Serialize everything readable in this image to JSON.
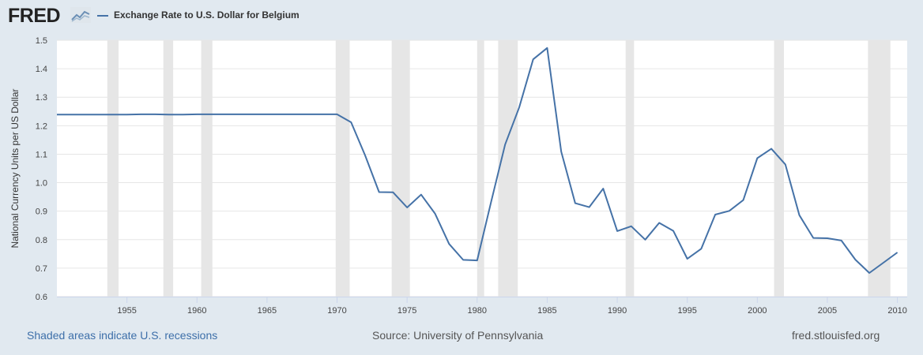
{
  "header": {
    "logo_text": "FRED",
    "logo_icon": "line-chart-icon"
  },
  "colors": {
    "background": "#e1e9f0",
    "plot_background": "#ffffff",
    "series_line": "#4572a7",
    "recession_shade": "#e6e6e6",
    "grid": "#e6e6e6",
    "link": "#3d6fa9"
  },
  "footer": {
    "recession_note": "Shaded areas indicate U.S. recessions",
    "source": "Source: University of Pennsylvania",
    "site": "fred.stlouisfed.org"
  },
  "chart_data": {
    "type": "line",
    "title": "",
    "xlabel": "",
    "ylabel": "National Currency Units per US Dollar",
    "xlim": [
      1950,
      2010.7
    ],
    "ylim": [
      0.6,
      1.5
    ],
    "y_ticks": [
      0.6,
      0.7,
      0.8,
      0.9,
      1.0,
      1.1,
      1.2,
      1.3,
      1.4,
      1.5
    ],
    "y_tick_labels": [
      "0.6",
      "0.7",
      "0.8",
      "0.9",
      "1.0",
      "1.1",
      "1.2",
      "1.3",
      "1.4",
      "1.5"
    ],
    "x_ticks": [
      1955,
      1960,
      1965,
      1970,
      1975,
      1980,
      1985,
      1990,
      1995,
      2000,
      2005,
      2010
    ],
    "x_tick_labels": [
      "1955",
      "1960",
      "1965",
      "1970",
      "1975",
      "1980",
      "1985",
      "1990",
      "1995",
      "2000",
      "2005",
      "2010"
    ],
    "grid": "horizontal",
    "legend_placement": "top-left",
    "recessions": [
      [
        1953.6,
        1954.4
      ],
      [
        1957.6,
        1958.3
      ],
      [
        1960.3,
        1961.1
      ],
      [
        1969.9,
        1970.9
      ],
      [
        1973.9,
        1975.2
      ],
      [
        1980.0,
        1980.5
      ],
      [
        1981.5,
        1982.9
      ],
      [
        1990.6,
        1991.2
      ],
      [
        2001.2,
        2001.9
      ],
      [
        2007.9,
        2009.5
      ]
    ],
    "series": [
      {
        "name": "Exchange Rate to U.S. Dollar for Belgium",
        "x": [
          1950,
          1951,
          1952,
          1953,
          1954,
          1955,
          1956,
          1957,
          1958,
          1959,
          1960,
          1961,
          1962,
          1963,
          1964,
          1965,
          1966,
          1967,
          1968,
          1969,
          1970,
          1971,
          1972,
          1973,
          1974,
          1975,
          1976,
          1977,
          1978,
          1979,
          1980,
          1981,
          1982,
          1983,
          1984,
          1985,
          1986,
          1987,
          1988,
          1989,
          1990,
          1991,
          1992,
          1993,
          1994,
          1995,
          1996,
          1997,
          1998,
          1999,
          2000,
          2001,
          2002,
          2003,
          2004,
          2005,
          2006,
          2007,
          2008,
          2009,
          2010
        ],
        "values": [
          1.239,
          1.239,
          1.239,
          1.239,
          1.239,
          1.239,
          1.24,
          1.24,
          1.239,
          1.239,
          1.24,
          1.24,
          1.24,
          1.24,
          1.24,
          1.24,
          1.24,
          1.24,
          1.24,
          1.24,
          1.24,
          1.212,
          1.096,
          0.967,
          0.966,
          0.913,
          0.958,
          0.891,
          0.785,
          0.729,
          0.727,
          0.933,
          1.134,
          1.264,
          1.433,
          1.473,
          1.109,
          0.928,
          0.914,
          0.979,
          0.83,
          0.847,
          0.8,
          0.859,
          0.831,
          0.733,
          0.768,
          0.888,
          0.901,
          0.939,
          1.086,
          1.119,
          1.064,
          0.886,
          0.806,
          0.805,
          0.797,
          0.73,
          0.683,
          0.719,
          0.755
        ]
      }
    ]
  }
}
